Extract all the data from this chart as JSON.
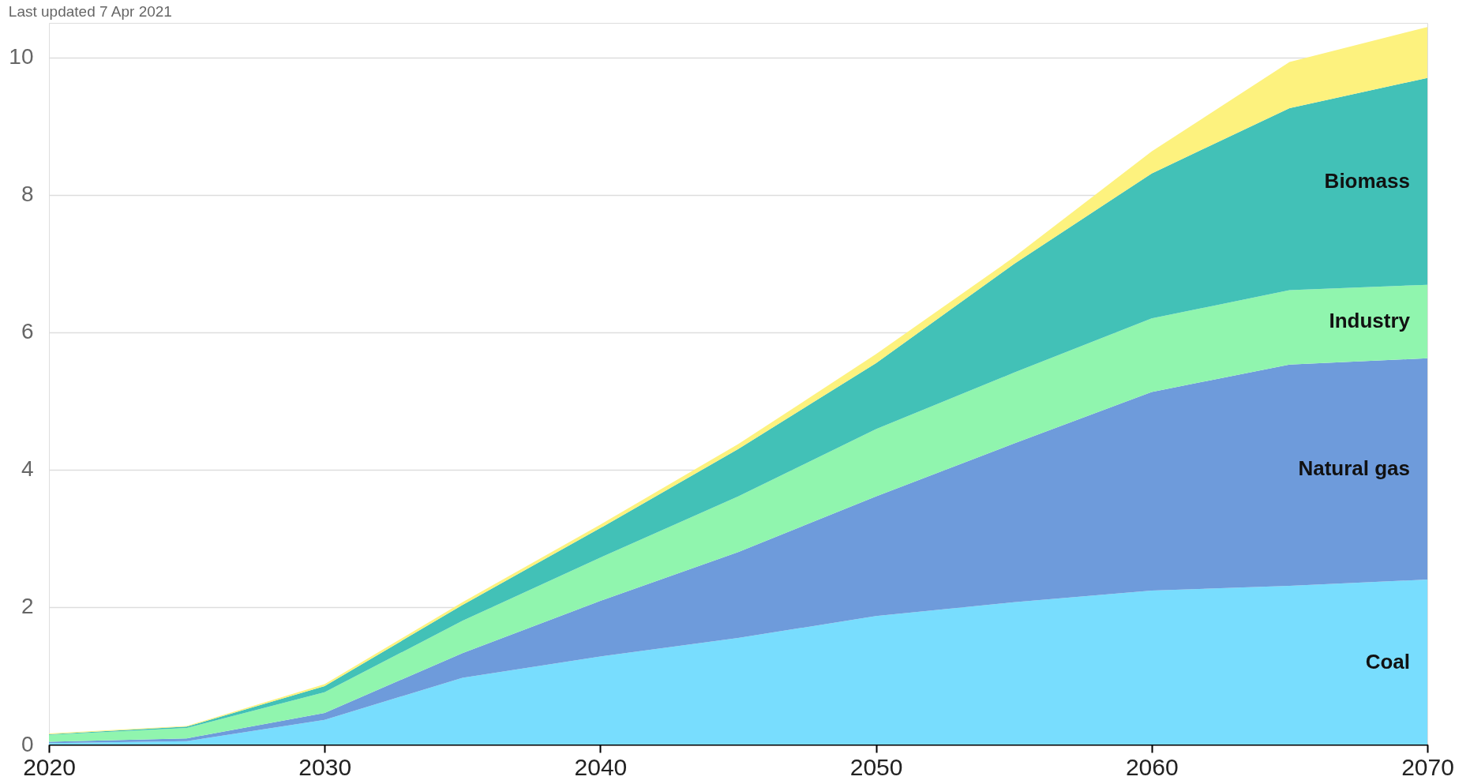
{
  "chart_data": {
    "type": "area",
    "stacked": true,
    "annotations": [
      "Last updated 7 Apr 2021"
    ],
    "x": [
      2020,
      2025,
      2030,
      2035,
      2040,
      2045,
      2050,
      2055,
      2060,
      2065,
      2070
    ],
    "series": [
      {
        "name": "Coal",
        "color": "#78ddfe",
        "values": [
          0.02,
          0.05,
          0.36,
          0.97,
          1.28,
          1.55,
          1.87,
          2.07,
          2.24,
          2.31,
          2.4
        ]
      },
      {
        "name": "Natural gas",
        "color": "#6e9bdb",
        "values": [
          0.02,
          0.04,
          0.1,
          0.36,
          0.81,
          1.25,
          1.74,
          2.31,
          2.89,
          3.22,
          3.22
        ]
      },
      {
        "name": "Industry",
        "color": "#90f5ae",
        "values": [
          0.1,
          0.15,
          0.3,
          0.47,
          0.63,
          0.81,
          0.98,
          1.03,
          1.07,
          1.08,
          1.07
        ]
      },
      {
        "name": "Biomass",
        "color": "#42c1b7",
        "values": [
          0.01,
          0.02,
          0.09,
          0.23,
          0.43,
          0.69,
          0.96,
          1.58,
          2.11,
          2.65,
          3.01
        ]
      },
      {
        "color": "#fdf27e",
        "values": [
          0.01,
          0.01,
          0.03,
          0.04,
          0.05,
          0.07,
          0.13,
          0.1,
          0.32,
          0.67,
          0.74
        ]
      }
    ],
    "xlim": [
      2020,
      2070
    ],
    "xticks": [
      2020,
      2030,
      2040,
      2050,
      2060,
      2070
    ],
    "ylim": [
      0,
      10.5
    ],
    "yticks": [
      0,
      2,
      4,
      6,
      8,
      10
    ],
    "grid": "y"
  }
}
